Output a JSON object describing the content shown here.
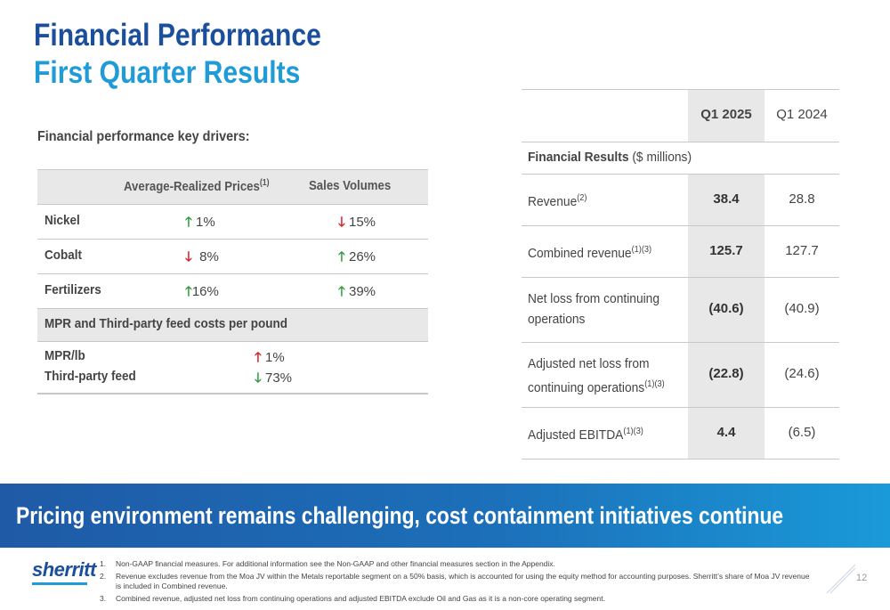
{
  "title": {
    "line1": "Financial Performance",
    "line2": "First Quarter Results"
  },
  "drivers": {
    "heading": "Financial performance key drivers:",
    "header": {
      "col1": "Average-Realized Prices",
      "col1_sup": "(1)",
      "col2": "Sales Volumes"
    },
    "rows": [
      {
        "name": "Nickel",
        "price_dir": "up",
        "price": "1%",
        "volume_dir": "down",
        "volume": "15%"
      },
      {
        "name": "Cobalt",
        "price_dir": "down",
        "price": "8%",
        "volume_dir": "up",
        "volume": "26%"
      },
      {
        "name": "Fertilizers",
        "price_dir": "up",
        "price": "16%",
        "volume_dir": "up",
        "volume": "39%"
      }
    ],
    "costs_heading": "MPR and Third-party feed costs per pound",
    "costs": [
      {
        "name": "MPR/lb",
        "dir": "up",
        "value": "1%"
      },
      {
        "name": "Third-party feed",
        "dir": "down",
        "value": "73%"
      }
    ]
  },
  "results": {
    "col_q1_2025": "Q1 2025",
    "col_q1_2024": "Q1 2024",
    "section_label_bold": "Financial Results",
    "section_label_rest": " ($ millions)",
    "rows": [
      {
        "label": "Revenue",
        "sup": "(2)",
        "q1_2025": "38.4",
        "q1_2024": "28.8"
      },
      {
        "label": "Combined revenue",
        "sup": "(1)(3)",
        "q1_2025": "125.7",
        "q1_2024": "127.7"
      },
      {
        "label_l1": "Net loss from continuing",
        "label_l2": "operations",
        "sup": "",
        "q1_2025": "(40.6)",
        "q1_2024": "(40.9)"
      },
      {
        "label_l1": "Adjusted net loss from",
        "label_l2": "continuing operations",
        "sup": "(1)(3)",
        "q1_2025": "(22.8)",
        "q1_2024": "(24.6)"
      },
      {
        "label": "Adjusted EBITDA",
        "sup": "(1)(3)",
        "q1_2025": "4.4",
        "q1_2024": "(6.5)"
      }
    ]
  },
  "banner": "Pricing environment remains challenging, cost containment initiatives continue",
  "logo": "sherritt",
  "footnotes": [
    {
      "num": "1.",
      "text": "Non-GAAP financial measures. For additional information see the Non-GAAP and other financial measures section in the Appendix."
    },
    {
      "num": "2.",
      "text": "Revenue excludes revenue from the Moa JV within the Metals reportable segment on a 50% basis, which is accounted for using the equity method for accounting purposes.  Sherritt’s share of Moa JV revenue is included in Combined revenue."
    },
    {
      "num": "3.",
      "text": "Combined revenue, adjusted net loss from continuing operations and adjusted EBITDA exclude Oil and Gas as it is a non-core operating segment."
    }
  ],
  "page_number": "12",
  "colors": {
    "title_dark": "#1b4f9c",
    "title_light": "#1f9bd7",
    "arrow_up": "#2e9b3c",
    "arrow_down": "#d4202a",
    "table_shade": "#e8e8e8"
  }
}
